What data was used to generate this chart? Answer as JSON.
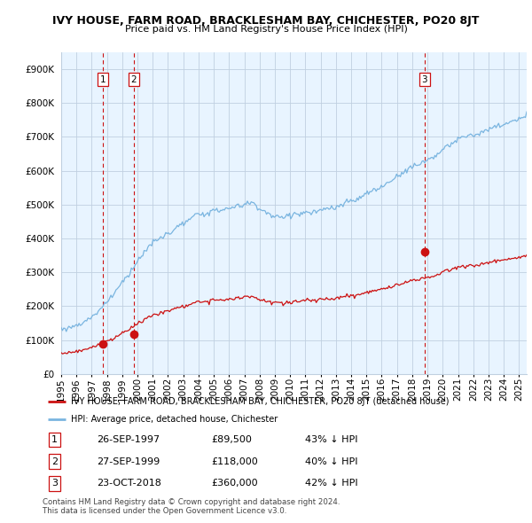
{
  "title": "IVY HOUSE, FARM ROAD, BRACKLESHAM BAY, CHICHESTER, PO20 8JT",
  "subtitle": "Price paid vs. HM Land Registry's House Price Index (HPI)",
  "yticks": [
    0,
    100000,
    200000,
    300000,
    400000,
    500000,
    600000,
    700000,
    800000,
    900000
  ],
  "ytick_labels": [
    "£0",
    "£100K",
    "£200K",
    "£300K",
    "£400K",
    "£500K",
    "£600K",
    "£700K",
    "£800K",
    "£900K"
  ],
  "ylim": [
    0,
    950000
  ],
  "xlim_start": 1995.0,
  "xlim_end": 2025.5,
  "sale_dates": [
    1997.74,
    1999.74,
    2018.81
  ],
  "sale_prices": [
    89500,
    118000,
    360000
  ],
  "sale_labels": [
    "1",
    "2",
    "3"
  ],
  "hpi_color": "#7ab5e0",
  "hpi_fill_color": "#ddeeff",
  "price_color": "#cc1111",
  "vline_color": "#cc1111",
  "background_color": "#ffffff",
  "plot_bg_color": "#e8f4ff",
  "grid_color": "#c0d0e0",
  "legend_line1": "IVY HOUSE, FARM ROAD, BRACKLESHAM BAY, CHICHESTER, PO20 8JT (detached house)",
  "legend_line2": "HPI: Average price, detached house, Chichester",
  "table_rows": [
    [
      "1",
      "26-SEP-1997",
      "£89,500",
      "43% ↓ HPI"
    ],
    [
      "2",
      "27-SEP-1999",
      "£118,000",
      "40% ↓ HPI"
    ],
    [
      "3",
      "23-OCT-2018",
      "£360,000",
      "42% ↓ HPI"
    ]
  ],
  "footer": "Contains HM Land Registry data © Crown copyright and database right 2024.\nThis data is licensed under the Open Government Licence v3.0."
}
